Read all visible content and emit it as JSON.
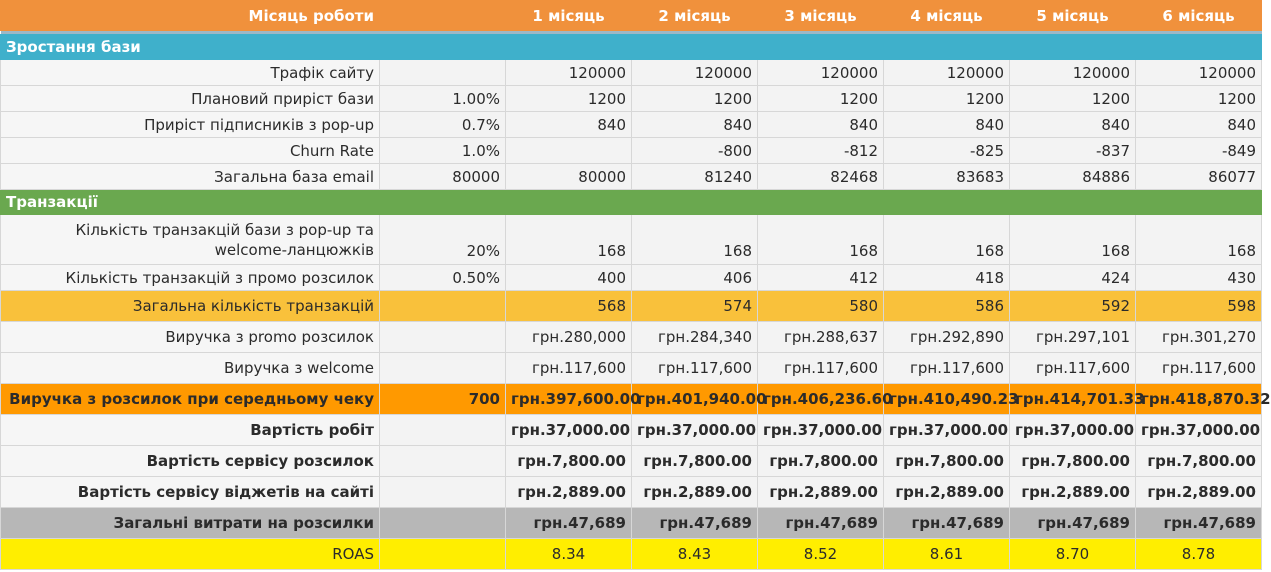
{
  "header": {
    "label": "Місяць роботи",
    "months": [
      "1 місяць",
      "2 місяць",
      "3 місяць",
      "4 місяць",
      "5 місяць",
      "6 місяць"
    ]
  },
  "sections": {
    "growth": "Зростання бази",
    "transactions": "Транзакції"
  },
  "rows": {
    "traffic": {
      "label": "Трафік сайту",
      "param": "",
      "values": [
        "120000",
        "120000",
        "120000",
        "120000",
        "120000",
        "120000"
      ]
    },
    "planned_growth": {
      "label": "Плановий приріст бази",
      "param": "1.00%",
      "values": [
        "1200",
        "1200",
        "1200",
        "1200",
        "1200",
        "1200"
      ]
    },
    "popup_growth": {
      "label": "Приріст підписників з pop-up",
      "param": "0.7%",
      "values": [
        "840",
        "840",
        "840",
        "840",
        "840",
        "840"
      ]
    },
    "churn": {
      "label": "Churn Rate",
      "param": "1.0%",
      "values": [
        "",
        "-800",
        "-812",
        "-825",
        "-837",
        "-849"
      ]
    },
    "total_base": {
      "label": "Загальна база email",
      "param": "80000",
      "values": [
        "80000",
        "81240",
        "82468",
        "83683",
        "84886",
        "86077"
      ]
    },
    "tx_popup": {
      "label": "Кількість транзакцій бази з pop-up та welcome-ланцюжків",
      "param": "20%",
      "values": [
        "168",
        "168",
        "168",
        "168",
        "168",
        "168"
      ]
    },
    "tx_promo": {
      "label": "Кількість транзакцій з промо розсилок",
      "param": "0.50%",
      "values": [
        "400",
        "406",
        "412",
        "418",
        "424",
        "430"
      ]
    },
    "tx_total": {
      "label": "Загальна кількість транзакцій",
      "param": "",
      "values": [
        "568",
        "574",
        "580",
        "586",
        "592",
        "598"
      ]
    },
    "rev_promo": {
      "label": "Виручка з promo розсилок",
      "param": "",
      "values": [
        "грн.280,000",
        "грн.284,340",
        "грн.288,637",
        "грн.292,890",
        "грн.297,101",
        "грн.301,270"
      ]
    },
    "rev_welcome": {
      "label": "Виручка з welcome",
      "param": "",
      "values": [
        "грн.117,600",
        "грн.117,600",
        "грн.117,600",
        "грн.117,600",
        "грн.117,600",
        "грн.117,600"
      ]
    },
    "rev_total": {
      "label": "Виручка з розсилок при середньому чеку",
      "param": "700",
      "values": [
        "грн.397,600.00",
        "грн.401,940.00",
        "грн.406,236.60",
        "грн.410,490.23",
        "грн.414,701.33",
        "грн.418,870.32"
      ]
    },
    "cost_work": {
      "label": "Вартість робіт",
      "param": "",
      "values": [
        "грн.37,000.00",
        "грн.37,000.00",
        "грн.37,000.00",
        "грн.37,000.00",
        "грн.37,000.00",
        "грн.37,000.00"
      ]
    },
    "cost_service": {
      "label": "Вартість сервісу розсилок",
      "param": "",
      "values": [
        "грн.7,800.00",
        "грн.7,800.00",
        "грн.7,800.00",
        "грн.7,800.00",
        "грн.7,800.00",
        "грн.7,800.00"
      ]
    },
    "cost_widgets": {
      "label": "Вартість сервісу віджетів на сайті",
      "param": "",
      "values": [
        "грн.2,889.00",
        "грн.2,889.00",
        "грн.2,889.00",
        "грн.2,889.00",
        "грн.2,889.00",
        "грн.2,889.00"
      ]
    },
    "cost_total": {
      "label": "Загальні витрати на розсилки",
      "param": "",
      "values": [
        "грн.47,689",
        "грн.47,689",
        "грн.47,689",
        "грн.47,689",
        "грн.47,689",
        "грн.47,689"
      ]
    },
    "roas": {
      "label": "ROAS",
      "param": "",
      "values": [
        "8.34",
        "8.43",
        "8.52",
        "8.61",
        "8.70",
        "8.78"
      ]
    }
  }
}
